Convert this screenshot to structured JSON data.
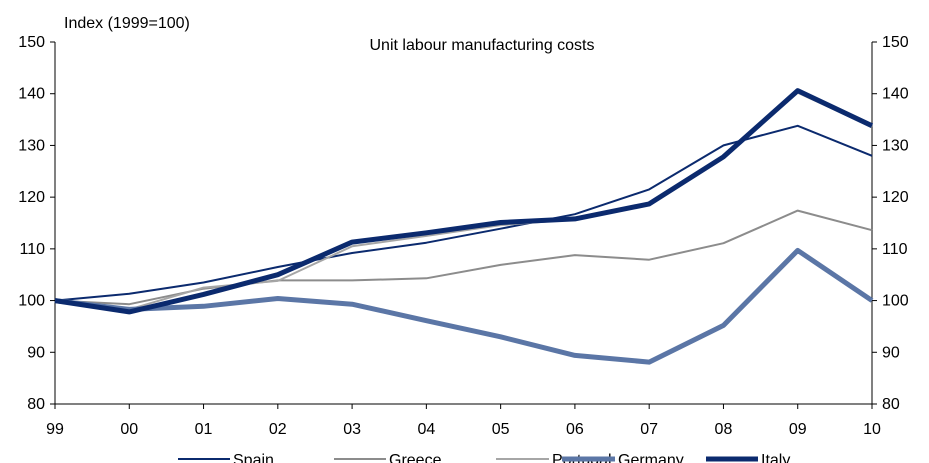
{
  "chart_data": {
    "type": "line",
    "title": "Unit labour manufacturing costs",
    "ylabel": "Index (1999=100)",
    "xlabel": "",
    "categories": [
      "99",
      "00",
      "01",
      "02",
      "03",
      "04",
      "05",
      "06",
      "07",
      "08",
      "09",
      "10"
    ],
    "ylim": [
      80,
      150
    ],
    "yticks": [
      80,
      90,
      100,
      110,
      120,
      130,
      140,
      150
    ],
    "grid": false,
    "legend_position": "bottom",
    "series": [
      {
        "name": "Spain",
        "color": "#0b2a6e",
        "width": 2,
        "values": [
          100,
          101.3,
          103.5,
          106.5,
          109.2,
          111.2,
          113.9,
          116.7,
          121.5,
          130,
          133.8,
          128
        ]
      },
      {
        "name": "Greece",
        "color": "#8c8c8c",
        "width": 2,
        "values": [
          100,
          99.3,
          102.3,
          103.9,
          103.9,
          104.3,
          106.9,
          108.8,
          107.9,
          111.1,
          117.4,
          113.6
        ]
      },
      {
        "name": "Portugal",
        "color": "#a6a6a6",
        "width": 2,
        "values": [
          100,
          98.3,
          102.5,
          103.8,
          110.5,
          112.5,
          114.6,
          115.7,
          118.5,
          127.8,
          140.2,
          133.6
        ]
      },
      {
        "name": "Germany",
        "color": "#5b76a6",
        "width": 5,
        "values": [
          100,
          98.3,
          98.9,
          100.4,
          99.3,
          96.1,
          93,
          89.4,
          88.1,
          95.2,
          109.7,
          100
        ]
      },
      {
        "name": "Italy",
        "color": "#0b2a6e",
        "width": 5,
        "values": [
          100,
          97.8,
          101.2,
          105,
          111.3,
          113.1,
          115.1,
          115.8,
          118.7,
          127.8,
          140.6,
          133.8
        ]
      }
    ]
  }
}
